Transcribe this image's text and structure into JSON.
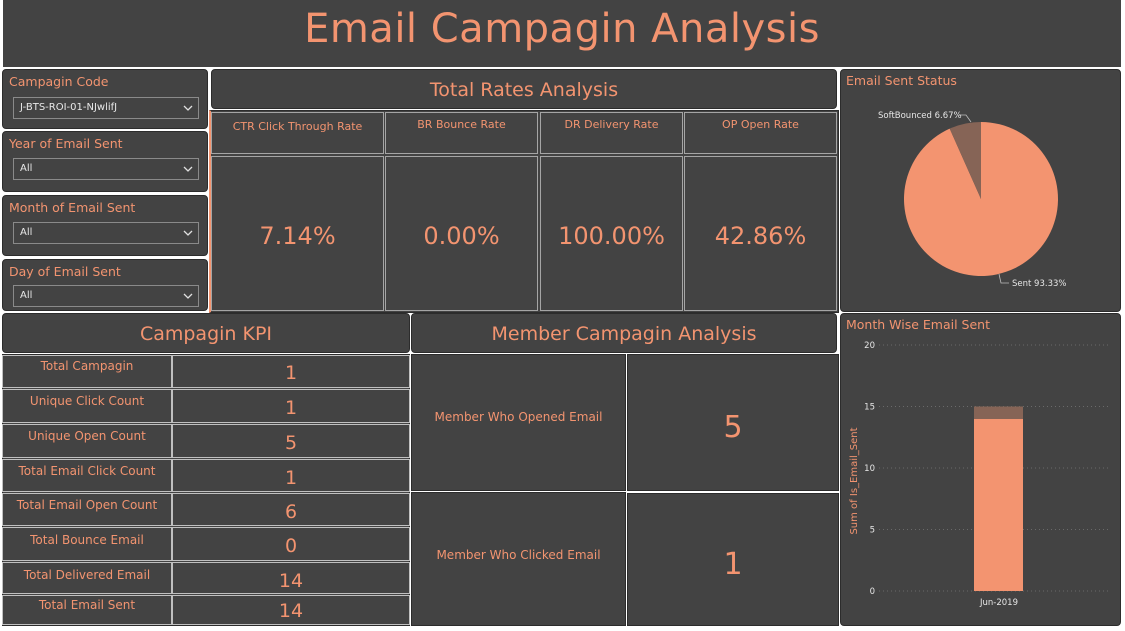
{
  "header": {
    "title": "Email Campagin Analysis"
  },
  "filters": [
    {
      "label": "Campagin Code",
      "value": "J-BTS-ROI-01-NJwlifJ"
    },
    {
      "label": "Year of Email Sent",
      "value": "All"
    },
    {
      "label": "Month of Email Sent",
      "value": "All"
    },
    {
      "label": "Day of Email Sent",
      "value": "All"
    }
  ],
  "rates": {
    "title": "Total Rates Analysis",
    "items": [
      {
        "label": "CTR Click Through Rate",
        "value": "7.14%"
      },
      {
        "label": "BR Bounce Rate",
        "value": "0.00%"
      },
      {
        "label": "DR Delivery Rate",
        "value": "100.00%"
      },
      {
        "label": "OP Open Rate",
        "value": "42.86%"
      }
    ]
  },
  "email_status": {
    "title": "Email Sent Status",
    "label_softbounced": "SoftBounced 6.67%",
    "label_sent": "Sent 93.33%"
  },
  "kpi": {
    "title": "Campagin KPI",
    "rows": [
      {
        "label": "Total Campagin",
        "value": "1"
      },
      {
        "label": "Unique Click Count",
        "value": "1"
      },
      {
        "label": "Unique Open Count",
        "value": "5"
      },
      {
        "label": "Total Email Click Count",
        "value": "1"
      },
      {
        "label": "Total Email Open Count",
        "value": "6"
      },
      {
        "label": "Total Bounce Email",
        "value": "0"
      },
      {
        "label": "Total Delivered Email",
        "value": "14"
      },
      {
        "label": "Total Email Sent",
        "value": "14"
      }
    ]
  },
  "member": {
    "title": "Member Campagin Analysis",
    "opened_label": "Member Who Opened Email",
    "opened_value": "5",
    "clicked_label": "Member Who Clicked Email",
    "clicked_value": "1"
  },
  "month_chart": {
    "title": "Month Wise Email Sent",
    "ylabel": "Sum of Is_Email_Sent",
    "ticks": [
      "0",
      "5",
      "10",
      "15",
      "20"
    ],
    "category": "Jun-2019"
  },
  "chart_data": [
    {
      "type": "pie",
      "title": "Email Sent Status",
      "labels": [
        "Sent",
        "SoftBounced"
      ],
      "values": [
        93.33,
        6.67
      ],
      "unit": "%",
      "colors": [
        "#F39470",
        "#866456"
      ]
    },
    {
      "type": "bar",
      "title": "Month Wise Email Sent",
      "ylabel": "Sum of Is_Email_Sent",
      "categories": [
        "Jun-2019"
      ],
      "stacked": true,
      "ylim": [
        0,
        20
      ],
      "yticks": [
        0,
        5,
        10,
        15,
        20
      ],
      "series": [
        {
          "values": [
            14
          ],
          "color": "#F39470"
        },
        {
          "values": [
            1
          ],
          "color": "#866456"
        }
      ],
      "grid": true
    }
  ],
  "colors": {
    "background": "#434343",
    "accent": "#F39470",
    "muted": "#866456"
  }
}
